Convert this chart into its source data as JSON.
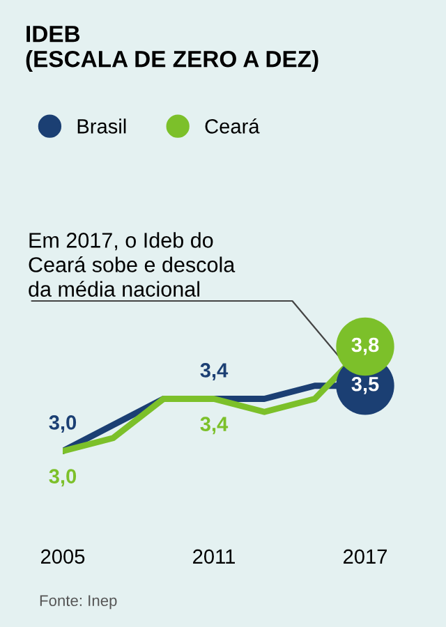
{
  "chart_data": {
    "type": "line",
    "title": "IDEB",
    "subtitle": "(ESCALA DE ZERO A DEZ)",
    "x": [
      2005,
      2007,
      2009,
      2011,
      2013,
      2015,
      2017
    ],
    "series": [
      {
        "name": "Brasil",
        "color": "#1b3f73",
        "values": [
          3.0,
          3.2,
          3.4,
          3.4,
          3.4,
          3.5,
          3.5
        ],
        "value_labels": [
          "3,0",
          null,
          null,
          "3,4",
          null,
          null,
          "3,5"
        ]
      },
      {
        "name": "Ceará",
        "color": "#7cc02a",
        "values": [
          3.0,
          3.1,
          3.4,
          3.4,
          3.3,
          3.4,
          3.8
        ],
        "value_labels": [
          "3,0",
          null,
          null,
          "3,4",
          null,
          null,
          "3,8"
        ]
      }
    ],
    "xlim": [
      2005,
      2017
    ],
    "xticks": [
      2005,
      2011,
      2017
    ],
    "tick_labels": "x",
    "annotations": [
      {
        "text": "Em 2017, o Ideb do\nCeará sobe e descola\nda média nacional",
        "x": 2016.5,
        "y": 3.6
      },
      "Fonte: Inep"
    ],
    "legend": "top left",
    "grid": false,
    "marker": "none",
    "line_style": "solid"
  }
}
